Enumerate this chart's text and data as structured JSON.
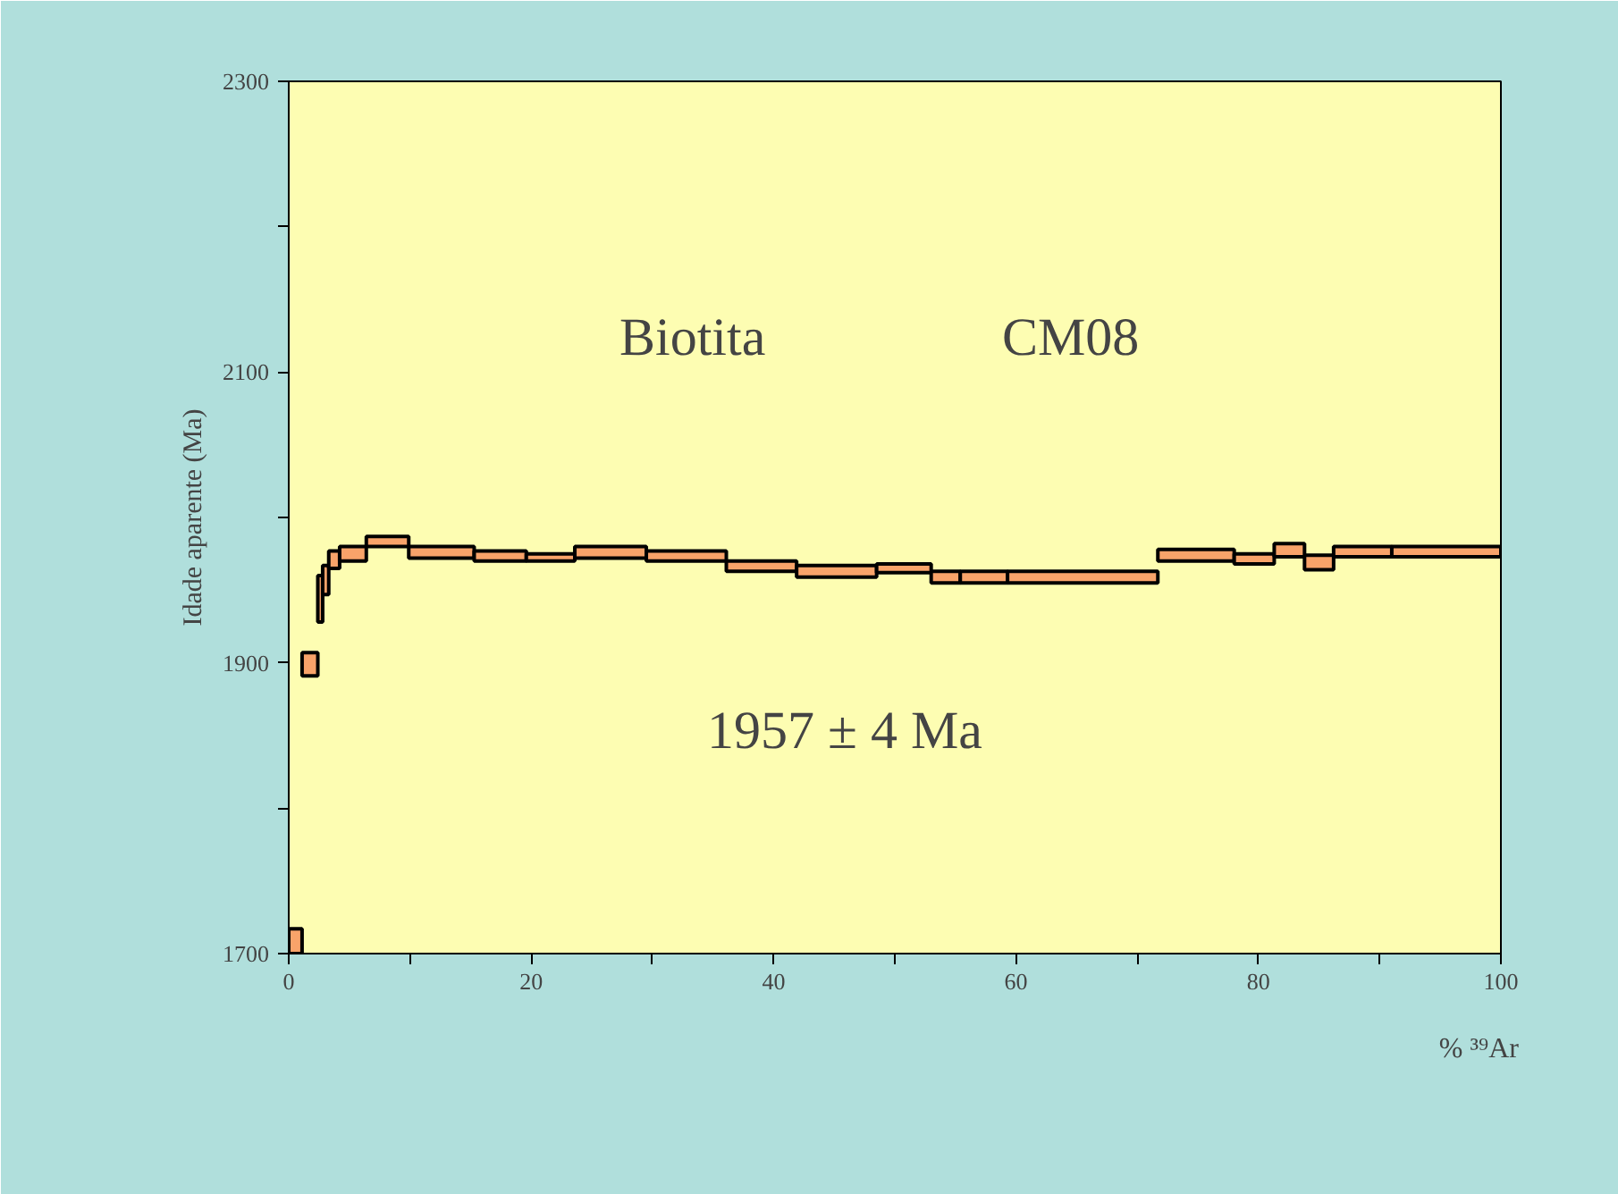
{
  "chart_data": {
    "type": "bar",
    "ylabel": "Idade aparente (Ma)",
    "xlabel": "% ³⁹Ar",
    "annotations": [
      "Biotita",
      "CM08",
      "1957 ± 4 Ma"
    ],
    "x": [
      0.55,
      1.75,
      2.6,
      3.05,
      3.75,
      5.3,
      8.15,
      12.6,
      17.45,
      21.6,
      26.55,
      32.8,
      39.0,
      45.2,
      50.75,
      54.2,
      57.35,
      65.5,
      74.85,
      79.65,
      82.55,
      85.0,
      88.6,
      95.5
    ],
    "base": [
      1700,
      1891,
      1928,
      1947,
      1965,
      1970,
      1980,
      1972,
      1970,
      1970,
      1972,
      1970,
      1963,
      1959,
      1962,
      1955,
      1955,
      1955,
      1970,
      1968,
      1973,
      1964,
      1973,
      1973
    ],
    "values": [
      17,
      16,
      32,
      20,
      12,
      10,
      7,
      8,
      7,
      5,
      8,
      7,
      7,
      8,
      6,
      8,
      8,
      8,
      8,
      7,
      9,
      10,
      7,
      7
    ],
    "color": "#f8a36a",
    "xlim": [
      0,
      100
    ],
    "ylim": [
      1700,
      2300
    ],
    "xticks": [
      0,
      {
        "value": 10,
        "label": null
      },
      20,
      {
        "value": 30,
        "label": null
      },
      40,
      {
        "value": 50,
        "label": null
      },
      60,
      {
        "value": 70,
        "label": null
      },
      80,
      {
        "value": 90,
        "label": null
      },
      100
    ],
    "yticks": [
      1700,
      {
        "value": 1800,
        "label": null
      },
      1900,
      {
        "value": 2000,
        "label": null
      },
      2100,
      {
        "value": 2200,
        "label": null
      },
      2300
    ],
    "grid": false
  }
}
